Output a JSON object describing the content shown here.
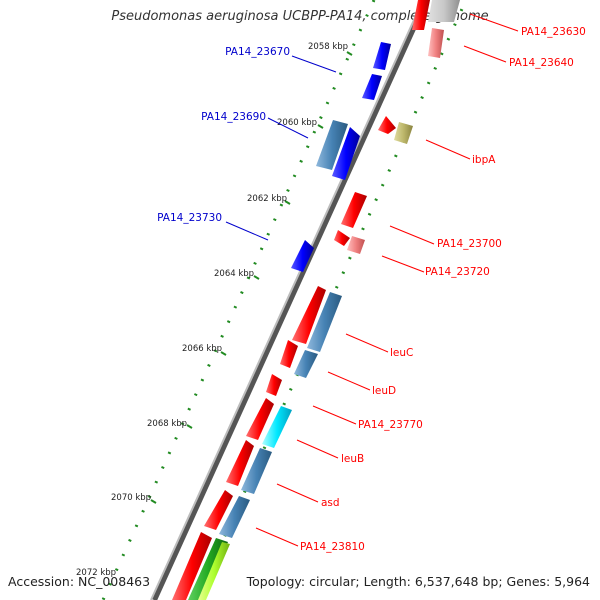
{
  "title": "Pseudomonas aeruginosa UCBPP-PA14, complete genome",
  "accession": "Accession: NC_008463",
  "topology": "Topology: circular; Length: 6,537,648 bp; Genes: 5,964",
  "colors": {
    "backbone": "#8c8c8c",
    "forward_cds": "#ff0000",
    "reverse_cds": "#0000ff",
    "ruler": "#228b22",
    "steelblue": "#4682b4",
    "pink": "#f08080",
    "olive": "#bdb76b",
    "cyan": "#00ffff",
    "green": "#22aa22",
    "lime": "#adff2f"
  },
  "kbp_labels": [
    "2058 kbp",
    "2060 kbp",
    "2062 kbp",
    "2064 kbp",
    "2066 kbp",
    "2068 kbp",
    "2070 kbp",
    "2072 kbp"
  ],
  "gene_labels_left": [
    "PA14_23670",
    "PA14_23690",
    "PA14_23730"
  ],
  "gene_labels_right": [
    "PA14_23630",
    "PA14_23640",
    "ibpA",
    "PA14_23700",
    "PA14_23720",
    "leuC",
    "leuD",
    "PA14_23770",
    "leuB",
    "asd",
    "PA14_23810"
  ]
}
